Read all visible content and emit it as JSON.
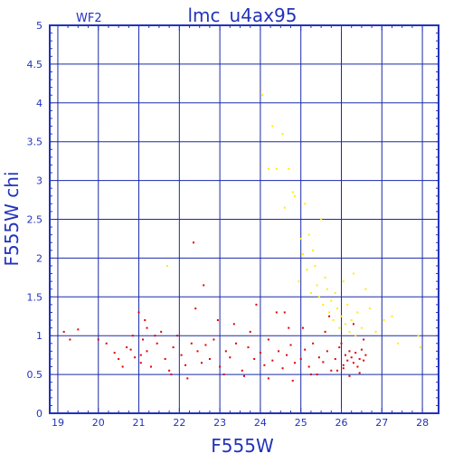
{
  "chart_data": {
    "type": "scatter",
    "title": "lmc_u4ax95",
    "subtitle": "WF2",
    "xlabel": "F555W",
    "ylabel": "F555W  chi",
    "xlim": [
      18.8,
      28.4
    ],
    "ylim": [
      0,
      5
    ],
    "grid": true,
    "x_ticks": [
      "19",
      "20",
      "21",
      "22",
      "23",
      "24",
      "25",
      "26",
      "27",
      "28"
    ],
    "y_ticks": [
      "0",
      "0.5",
      "1",
      "1.5",
      "2",
      "2.5",
      "3",
      "3.5",
      "4",
      "4.5",
      "5"
    ],
    "colors": {
      "axis": "#2233bb",
      "grid": "#1a2aa8",
      "series_red": "#e00000",
      "series_yellow": "#ffee00"
    },
    "series": [
      {
        "color": "#e00000",
        "x": [
          19.15,
          19.3,
          19.5,
          20.0,
          20.2,
          20.4,
          20.5,
          20.6,
          20.7,
          20.8,
          20.85,
          20.9,
          21.0,
          21.05,
          21.1,
          21.15,
          21.2,
          21.3,
          21.45,
          21.55,
          21.65,
          21.75,
          21.85,
          21.95,
          22.05,
          22.15,
          22.3,
          22.45,
          22.55,
          22.65,
          22.75,
          22.85,
          23.0,
          23.15,
          23.25,
          23.4,
          23.55,
          23.7,
          23.85,
          24.0,
          24.1,
          24.2,
          24.3,
          24.45,
          24.55,
          24.65,
          24.75,
          24.85,
          25.0,
          25.1,
          25.2,
          25.3,
          25.45,
          25.55,
          25.65,
          25.75,
          25.85,
          25.95,
          26.0,
          26.05,
          26.1,
          26.15,
          26.2,
          26.25,
          26.3,
          26.35,
          26.4,
          26.45,
          26.5,
          26.55,
          26.6,
          22.35,
          22.6,
          23.9,
          24.6,
          25.7,
          21.2,
          22.95,
          23.35,
          24.4,
          21.8,
          22.2,
          23.6,
          24.8,
          25.25,
          25.9,
          26.2,
          26.45,
          21.05,
          23.1,
          24.2,
          25.4,
          26.05,
          22.4,
          24.7,
          25.6,
          26.3,
          26.55,
          21.4,
          23.75,
          25.05
        ],
        "y": [
          1.05,
          0.95,
          1.08,
          0.95,
          0.9,
          0.78,
          0.7,
          0.6,
          0.85,
          0.82,
          1.0,
          0.72,
          1.3,
          0.65,
          0.95,
          1.2,
          0.8,
          0.6,
          0.9,
          1.05,
          0.7,
          0.55,
          0.85,
          1.0,
          0.75,
          0.62,
          0.9,
          0.8,
          0.65,
          0.88,
          0.7,
          0.95,
          0.6,
          0.8,
          0.72,
          0.9,
          0.55,
          0.85,
          0.7,
          0.78,
          0.62,
          0.95,
          0.68,
          0.8,
          0.58,
          0.75,
          0.88,
          0.65,
          0.7,
          0.82,
          0.6,
          0.9,
          0.72,
          0.66,
          0.8,
          0.55,
          0.7,
          0.85,
          0.9,
          0.62,
          0.75,
          0.68,
          0.8,
          0.72,
          0.65,
          0.78,
          0.6,
          0.7,
          0.82,
          0.68,
          0.75,
          2.2,
          1.65,
          1.4,
          1.3,
          1.25,
          1.1,
          1.2,
          1.15,
          1.3,
          0.5,
          0.45,
          0.48,
          0.42,
          0.5,
          0.55,
          0.48,
          0.52,
          0.75,
          0.5,
          0.45,
          0.5,
          0.58,
          1.35,
          1.1,
          1.05,
          1.15,
          0.95,
          1.0,
          1.05,
          1.1
        ]
      },
      {
        "color": "#ffee00",
        "x": [
          21.7,
          24.05,
          24.2,
          24.3,
          24.4,
          24.55,
          24.6,
          24.7,
          24.8,
          24.85,
          24.95,
          25.0,
          25.05,
          25.1,
          25.15,
          25.2,
          25.25,
          25.3,
          25.35,
          25.4,
          25.45,
          25.5,
          25.55,
          25.6,
          25.65,
          25.7,
          25.75,
          25.8,
          25.85,
          25.9,
          25.95,
          26.0,
          26.05,
          26.1,
          26.15,
          26.2,
          26.25,
          26.3,
          26.35,
          26.4,
          26.5,
          26.6,
          26.7,
          26.85,
          27.05,
          27.25,
          27.4,
          27.9,
          27.95
        ],
        "y": [
          1.9,
          4.1,
          3.15,
          3.7,
          3.15,
          3.6,
          2.65,
          3.15,
          2.85,
          2.8,
          1.7,
          2.25,
          2.05,
          2.7,
          1.85,
          2.3,
          1.55,
          2.1,
          1.9,
          1.65,
          1.5,
          2.5,
          1.4,
          1.75,
          1.6,
          1.3,
          1.45,
          1.2,
          1.55,
          1.35,
          1.1,
          1.25,
          1.7,
          1.15,
          1.4,
          1.05,
          1.2,
          1.8,
          1.0,
          1.3,
          1.1,
          1.6,
          1.35,
          1.05,
          1.2,
          1.25,
          0.9,
          1.0,
          0.85
        ]
      }
    ]
  }
}
